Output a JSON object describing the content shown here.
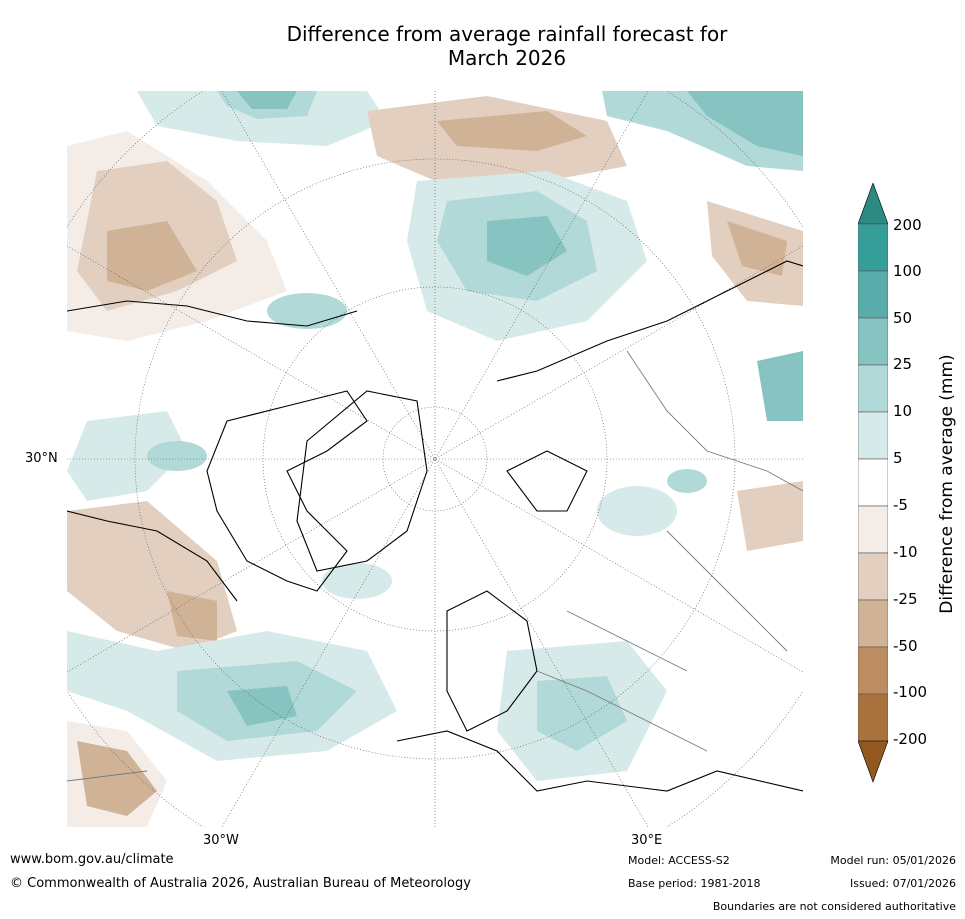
{
  "title_line1": "Difference from average rainfall forecast for",
  "title_line2": "March 2026",
  "lat_label": "30°N",
  "lon_labels": [
    "30°W",
    "30°E"
  ],
  "colorbar": {
    "title": "Difference from average (mm)",
    "ticks": [
      "200",
      "100",
      "50",
      "25",
      "10",
      "5",
      "-5",
      "-10",
      "-25",
      "-50",
      "-100",
      "-200"
    ],
    "colors": [
      "#2b8a84",
      "#369e99",
      "#5aacaa",
      "#87c3c1",
      "#b1d9d7",
      "#d6ebe9",
      "#ffffff",
      "#f3ece7",
      "#e2cfbf",
      "#d0b397",
      "#bd8d62",
      "#a9723c",
      "#91591e"
    ]
  },
  "footer": {
    "website": "www.bom.gov.au/climate",
    "copyright": "© Commonwealth of Australia 2026, Australian Bureau of Meteorology",
    "model": "Model: ACCESS-S2",
    "base_period": "Base period: 1981-2018",
    "model_run": "Model run: 05/01/2026",
    "issued": "Issued: 07/01/2026",
    "disclaimer": "Boundaries are not considered authoritative"
  }
}
